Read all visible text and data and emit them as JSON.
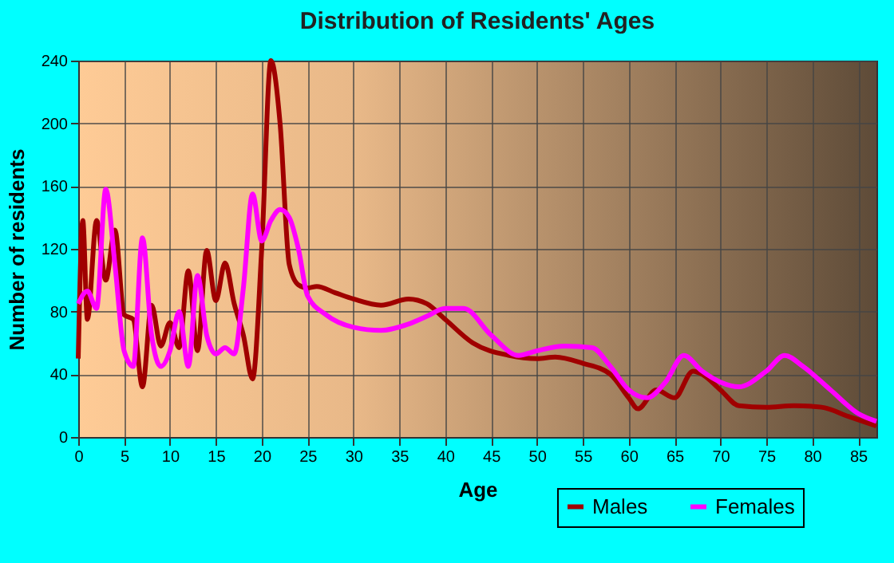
{
  "chart_data": {
    "type": "line",
    "title": "Distribution of Residents' Ages",
    "xlabel": "Age",
    "ylabel": "Number of residents",
    "xlim": [
      0,
      87
    ],
    "xticks": [
      0,
      5,
      10,
      15,
      20,
      25,
      30,
      35,
      40,
      45,
      50,
      55,
      60,
      65,
      70,
      75,
      80,
      85
    ],
    "ylim": [
      0,
      240
    ],
    "yticks": [
      0,
      40,
      80,
      120,
      160,
      200,
      240
    ],
    "grid": true,
    "legend": "bottom right",
    "marker": "none",
    "line_style": "solid",
    "series": [
      {
        "name": "Males",
        "color": "#a00000",
        "x": [
          0,
          0.5,
          1,
          2,
          3,
          4,
          5,
          6,
          7,
          8,
          9,
          10,
          11,
          12,
          13,
          14,
          15,
          16,
          17,
          18,
          19,
          20,
          21,
          22,
          23,
          24,
          25,
          26,
          28,
          30,
          33,
          36,
          38,
          40,
          43,
          47,
          50,
          52,
          55,
          58,
          60,
          61,
          63,
          65,
          67,
          68,
          70,
          72,
          75,
          78,
          81,
          84,
          87
        ],
        "values": [
          50,
          138,
          75,
          138,
          100,
          132,
          78,
          75,
          32,
          84,
          58,
          73,
          57,
          106,
          55,
          119,
          87,
          111,
          85,
          65,
          37,
          120,
          240,
          200,
          110,
          97,
          95,
          96,
          92,
          88,
          84,
          88,
          85,
          75,
          60,
          52,
          50,
          51,
          47,
          40,
          25,
          18,
          30,
          25,
          42,
          40,
          30,
          20,
          19,
          20,
          19,
          13,
          7
        ]
      },
      {
        "name": "Females",
        "color": "#ff00ff",
        "x": [
          0,
          1,
          2,
          3,
          4,
          5,
          6,
          7,
          8,
          9,
          10,
          11,
          12,
          13,
          14,
          15,
          16,
          17,
          18,
          19,
          20,
          21,
          22,
          23,
          24,
          25,
          27,
          30,
          33,
          36,
          38,
          40,
          42,
          45,
          48,
          50,
          53,
          56,
          58,
          60,
          62,
          64,
          66,
          68,
          70,
          72,
          75,
          77,
          79,
          82,
          85,
          87
        ],
        "values": [
          85,
          93,
          82,
          158,
          110,
          55,
          45,
          127,
          65,
          45,
          55,
          80,
          45,
          103,
          65,
          53,
          57,
          53,
          95,
          155,
          125,
          138,
          145,
          140,
          120,
          90,
          78,
          70,
          68,
          72,
          77,
          82,
          82,
          65,
          52,
          55,
          58,
          57,
          45,
          30,
          25,
          35,
          52,
          42,
          35,
          32,
          42,
          52,
          45,
          30,
          15,
          10
        ]
      }
    ]
  }
}
